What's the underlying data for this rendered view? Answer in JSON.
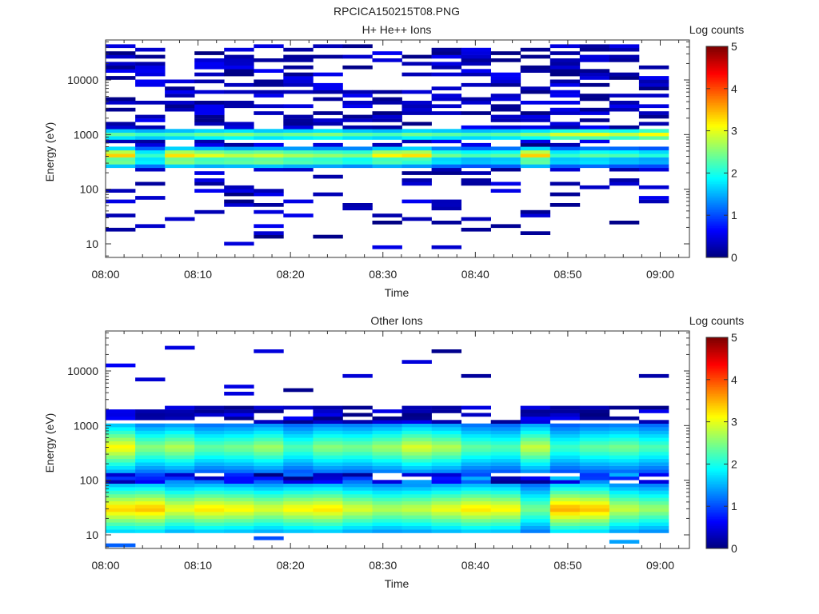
{
  "figure_title": "RPCICA150215T08.PNG",
  "chart_data": [
    {
      "type": "heatmap",
      "title": "H+ He++ Ions",
      "xlabel": "Time",
      "ylabel": "Energy (eV)",
      "colorbar_label": "Log counts",
      "x_ticks": [
        "08:00",
        "08:10",
        "08:20",
        "08:30",
        "08:40",
        "08:50",
        "09:00"
      ],
      "y_ticks": [
        "10",
        "100",
        "1000",
        "10000"
      ],
      "y_scale": "log",
      "ylim": [
        5,
        50000
      ],
      "colorbar_ticks": [
        "0",
        "1",
        "2",
        "3",
        "4",
        "5"
      ],
      "clim": [
        0,
        5
      ],
      "time_bins": [
        "08:00",
        "08:03",
        "08:06",
        "08:10",
        "08:13",
        "08:16",
        "08:19",
        "08:22",
        "08:26",
        "08:29",
        "08:32",
        "08:35",
        "08:38",
        "08:42",
        "08:45",
        "08:48",
        "08:51",
        "08:54",
        "08:57"
      ],
      "bands": [
        {
          "energy_ev": 1000,
          "log_counts": [
            2.4,
            2.2,
            2.3,
            2.5,
            2.6,
            2.4,
            2.5,
            2.6,
            2.4,
            2.3,
            2.5,
            2.4,
            2.3,
            2.4,
            2.6,
            3.0,
            3.1,
            2.9,
            3.2
          ]
        },
        {
          "energy_ev": 430,
          "log_counts": [
            3.6,
            2.3,
            3.5,
            3.2,
            3.0,
            3.1,
            2.9,
            2.8,
            2.7,
            3.4,
            3.5,
            2.6,
            2.4,
            2.5,
            3.6,
            2.3,
            2.5,
            2.4,
            2.2
          ]
        },
        {
          "energy_ev": 330,
          "log_counts": [
            2.8,
            2.1,
            2.9,
            2.6,
            2.7,
            2.8,
            2.6,
            2.5,
            2.3,
            2.6,
            2.4,
            2.0,
            1.8,
            1.9,
            2.7,
            1.9,
            2.0,
            1.8,
            1.7
          ]
        }
      ]
    },
    {
      "type": "heatmap",
      "title": "Other Ions",
      "xlabel": "Time",
      "ylabel": "Energy (eV)",
      "colorbar_label": "Log counts",
      "x_ticks": [
        "08:00",
        "08:10",
        "08:20",
        "08:30",
        "08:40",
        "08:50",
        "09:00"
      ],
      "y_ticks": [
        "10",
        "100",
        "1000",
        "10000"
      ],
      "y_scale": "log",
      "ylim": [
        5,
        50000
      ],
      "colorbar_ticks": [
        "0",
        "1",
        "2",
        "3",
        "4",
        "5"
      ],
      "clim": [
        0,
        5
      ],
      "time_bins": [
        "08:00",
        "08:03",
        "08:06",
        "08:10",
        "08:13",
        "08:16",
        "08:19",
        "08:22",
        "08:26",
        "08:29",
        "08:32",
        "08:35",
        "08:38",
        "08:42",
        "08:45",
        "08:48",
        "08:51",
        "08:54",
        "08:57"
      ],
      "bands": [
        {
          "energy_ev": 30,
          "log_counts": [
            3.4,
            3.5,
            3.1,
            3.3,
            3.2,
            3.0,
            3.2,
            3.3,
            3.0,
            2.8,
            2.9,
            3.1,
            3.3,
            3.2,
            2.5,
            3.6,
            3.5,
            2.9,
            2.7
          ]
        },
        {
          "energy_ev": 400,
          "log_counts": [
            3.2,
            2.6,
            2.8,
            2.4,
            2.5,
            2.7,
            2.3,
            2.6,
            2.5,
            2.7,
            3.0,
            2.8,
            2.4,
            2.3,
            2.9,
            2.2,
            2.4,
            2.5,
            2.3
          ]
        }
      ]
    }
  ]
}
